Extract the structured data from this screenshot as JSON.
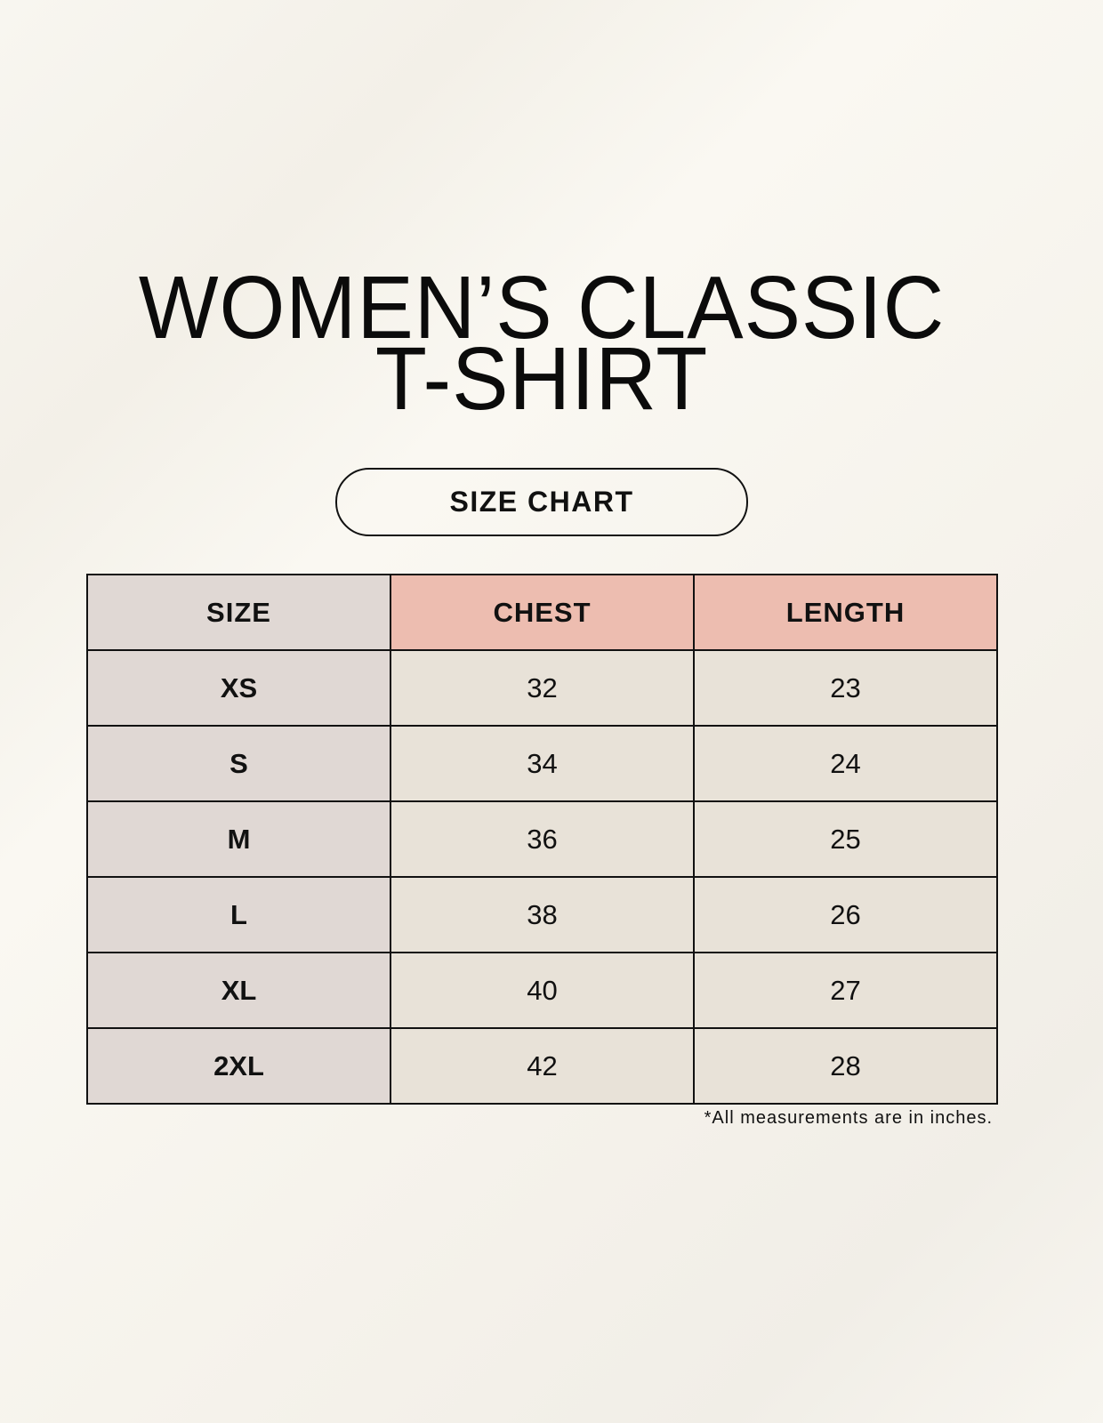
{
  "title": {
    "line1": "WOMEN’S CLASSIC",
    "line2": "T-SHIRT"
  },
  "subtitle": "SIZE CHART",
  "colors": {
    "size_column": "#e0d8d4",
    "header_accent": "#edbdb0",
    "cells": "#e8e2d8"
  },
  "table": {
    "headers": [
      "SIZE",
      "CHEST",
      "LENGTH"
    ],
    "rows": [
      [
        "XS",
        "32",
        "23"
      ],
      [
        "S",
        "34",
        "24"
      ],
      [
        "M",
        "36",
        "25"
      ],
      [
        "L",
        "38",
        "26"
      ],
      [
        "XL",
        "40",
        "27"
      ],
      [
        "2XL",
        "42",
        "28"
      ]
    ]
  },
  "note": "*All measurements are in inches."
}
